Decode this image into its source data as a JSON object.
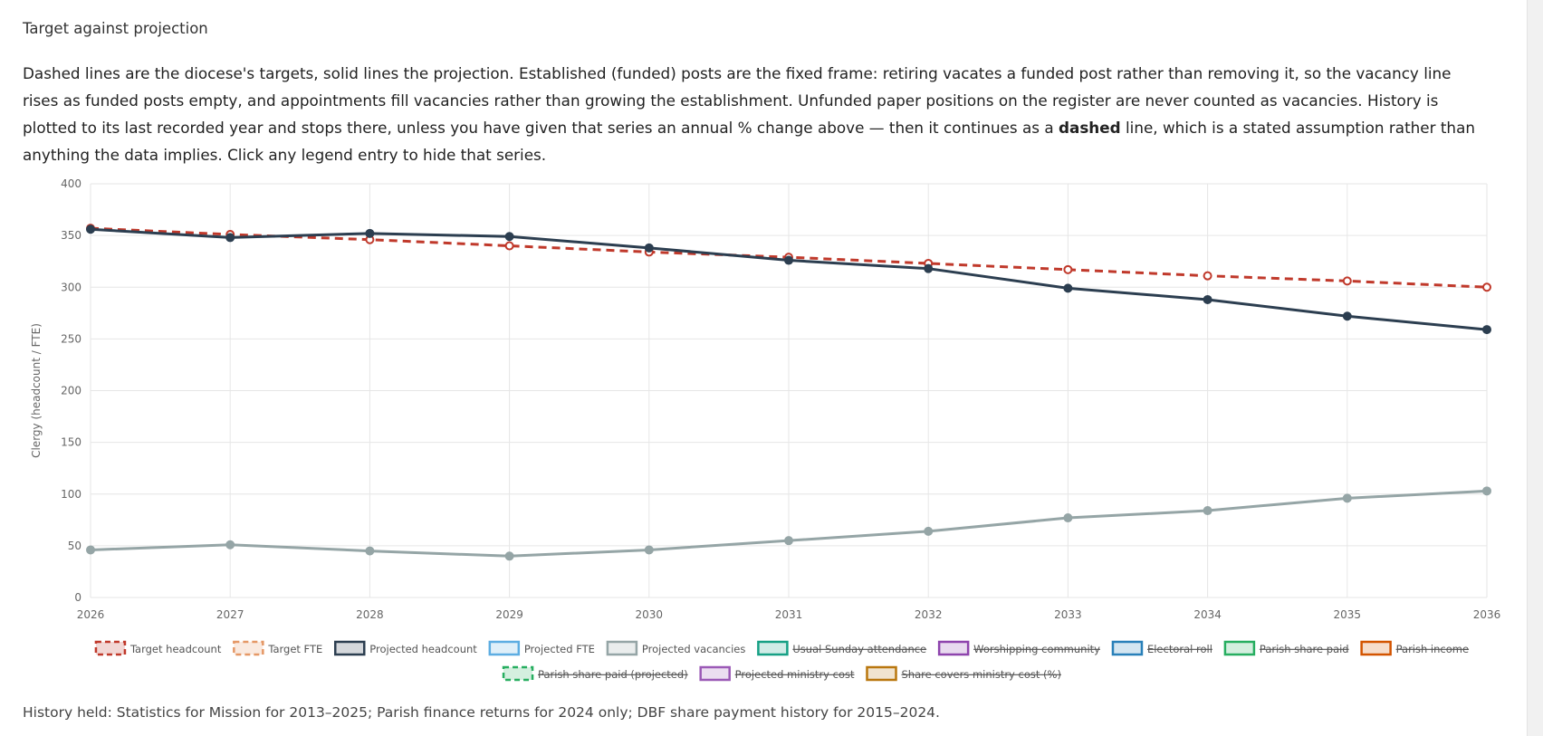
{
  "header": {
    "title": "Target against projection"
  },
  "description": {
    "before": "Dashed lines are the diocese's targets, solid lines the projection. Established (funded) posts are the fixed frame: retiring vacates a funded post rather than removing it, so the vacancy line rises as funded posts empty, and appointments fill vacancies rather than growing the establishment. Unfunded paper positions on the register are never counted as vacancies. History is plotted to its last recorded year and stops there, unless you have given that series an annual % change above — then it continues as a ",
    "bold": "dashed",
    "after": " line, which is a stated assumption rather than anything the data implies. Click any legend entry to hide that series."
  },
  "chart_data": {
    "type": "line",
    "y_label": "Clergy (headcount / FTE)",
    "categories": [
      "2026",
      "2027",
      "2028",
      "2029",
      "2030",
      "2031",
      "2032",
      "2033",
      "2034",
      "2035",
      "2036"
    ],
    "ylim": [
      0,
      400
    ],
    "yticks": [
      0,
      50,
      100,
      150,
      200,
      250,
      300,
      350,
      400
    ],
    "grid": true,
    "series": [
      {
        "name": "Target headcount",
        "color": "#c0392b",
        "dashed": true,
        "values": [
          357,
          351,
          346,
          340,
          334,
          329,
          323,
          317,
          311,
          306,
          300
        ]
      },
      {
        "name": "Target FTE",
        "color": "#e59866",
        "dashed": true
      },
      {
        "name": "Projected headcount",
        "color": "#2c3e50",
        "values": [
          356,
          348,
          352,
          349,
          338,
          326,
          318,
          299,
          288,
          272,
          259
        ]
      },
      {
        "name": "Projected FTE",
        "color": "#5dade2"
      },
      {
        "name": "Projected vacancies",
        "color": "#95a5a6",
        "values": [
          46,
          51,
          45,
          40,
          46,
          55,
          64,
          77,
          84,
          96,
          103
        ]
      },
      {
        "name": "Usual Sunday attendance",
        "color": "#16a085",
        "hidden": true
      },
      {
        "name": "Worshipping community",
        "color": "#8e44ad",
        "hidden": true
      },
      {
        "name": "Electoral roll",
        "color": "#2980b9",
        "hidden": true
      },
      {
        "name": "Parish share paid",
        "color": "#27ae60",
        "hidden": true
      },
      {
        "name": "Parish income",
        "color": "#d35400",
        "hidden": true
      },
      {
        "name": "Parish share paid (projected)",
        "color": "#27ae60",
        "dashed": true,
        "hidden": true
      },
      {
        "name": "Projected ministry cost",
        "color": "#9b59b6",
        "hidden": true
      },
      {
        "name": "Share covers ministry cost (%)",
        "color": "#b9770e",
        "hidden": true
      }
    ]
  },
  "footer": "History held: Statistics for Mission for 2013–2025; Parish finance returns for 2024 only; DBF share payment history for 2015–2024."
}
